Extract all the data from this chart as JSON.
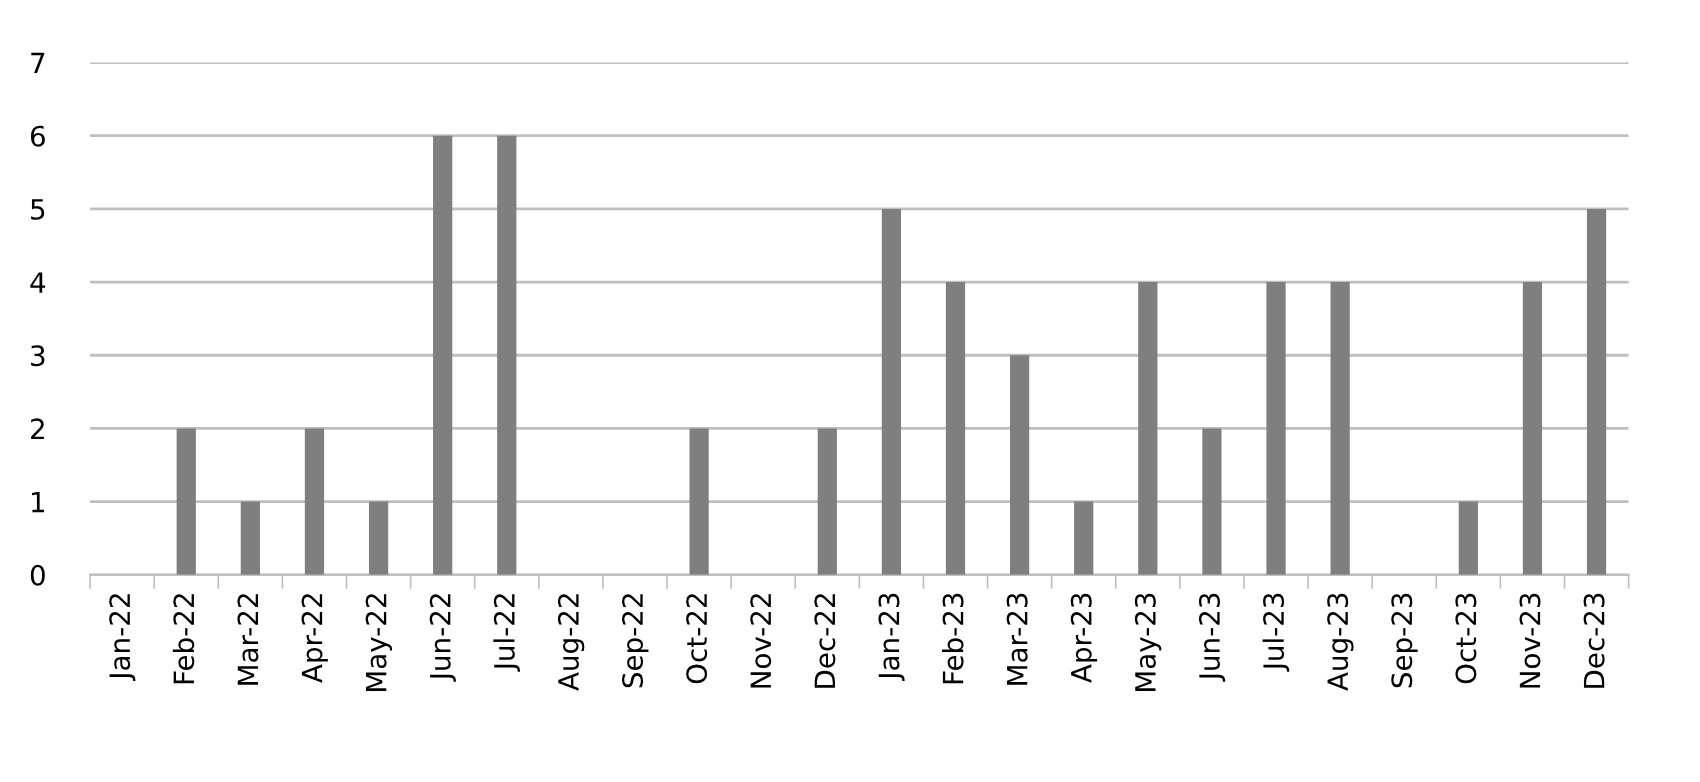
{
  "chart_data": {
    "type": "bar",
    "categories": [
      "Jan-22",
      "Feb-22",
      "Mar-22",
      "Apr-22",
      "May-22",
      "Jun-22",
      "Jul-22",
      "Aug-22",
      "Sep-22",
      "Oct-22",
      "Nov-22",
      "Dec-22",
      "Jan-23",
      "Feb-23",
      "Mar-23",
      "Apr-23",
      "May-23",
      "Jun-23",
      "Jul-23",
      "Aug-23",
      "Sep-23",
      "Oct-23",
      "Nov-23",
      "Dec-23"
    ],
    "values": [
      0,
      2,
      1,
      2,
      1,
      6,
      6,
      0,
      0,
      2,
      0,
      2,
      5,
      4,
      3,
      1,
      4,
      2,
      4,
      4,
      0,
      1,
      4,
      5
    ],
    "color": "#7f7f7f",
    "ylim": [
      0,
      7
    ],
    "yticks": [
      0,
      1,
      2,
      3,
      4,
      5,
      6,
      7
    ],
    "grid": "y",
    "legend": false
  }
}
